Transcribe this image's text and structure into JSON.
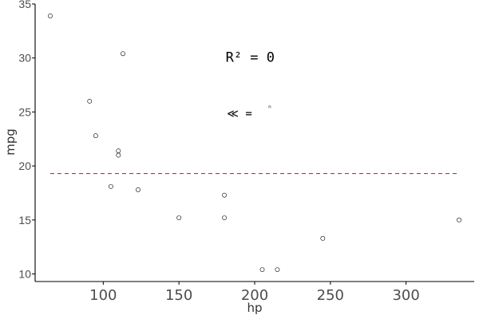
{
  "chart_data": {
    "type": "scatter",
    "title": "",
    "xlabel": "hp",
    "ylabel": "mpg",
    "xlim": [
      55,
      345
    ],
    "ylim": [
      9.3,
      35
    ],
    "x_ticks": [
      100,
      150,
      200,
      250,
      300
    ],
    "y_ticks": [
      10,
      15,
      20,
      25,
      30,
      35
    ],
    "grid": false,
    "points": [
      {
        "x": 65,
        "y": 33.9
      },
      {
        "x": 113,
        "y": 30.4
      },
      {
        "x": 91,
        "y": 26.0
      },
      {
        "x": 95,
        "y": 22.8
      },
      {
        "x": 110,
        "y": 21.4
      },
      {
        "x": 110,
        "y": 21.0
      },
      {
        "x": 105,
        "y": 18.1
      },
      {
        "x": 123,
        "y": 17.8
      },
      {
        "x": 150,
        "y": 15.2
      },
      {
        "x": 180,
        "y": 17.3
      },
      {
        "x": 180,
        "y": 15.2
      },
      {
        "x": 205,
        "y": 10.4
      },
      {
        "x": 215,
        "y": 10.4
      },
      {
        "x": 245,
        "y": 13.3
      },
      {
        "x": 335,
        "y": 15.0
      }
    ],
    "reference_line": {
      "y": 19.3,
      "color": "#e0203a",
      "style": "dashed"
    },
    "annotations": [
      {
        "text": "R²  = 0",
        "x": 197,
        "y": 30.0
      },
      {
        "text": "≪ =",
        "x": 190,
        "y": 24.9
      },
      {
        "text": "ⁿ",
        "x": 210,
        "y": 25.5
      }
    ]
  }
}
